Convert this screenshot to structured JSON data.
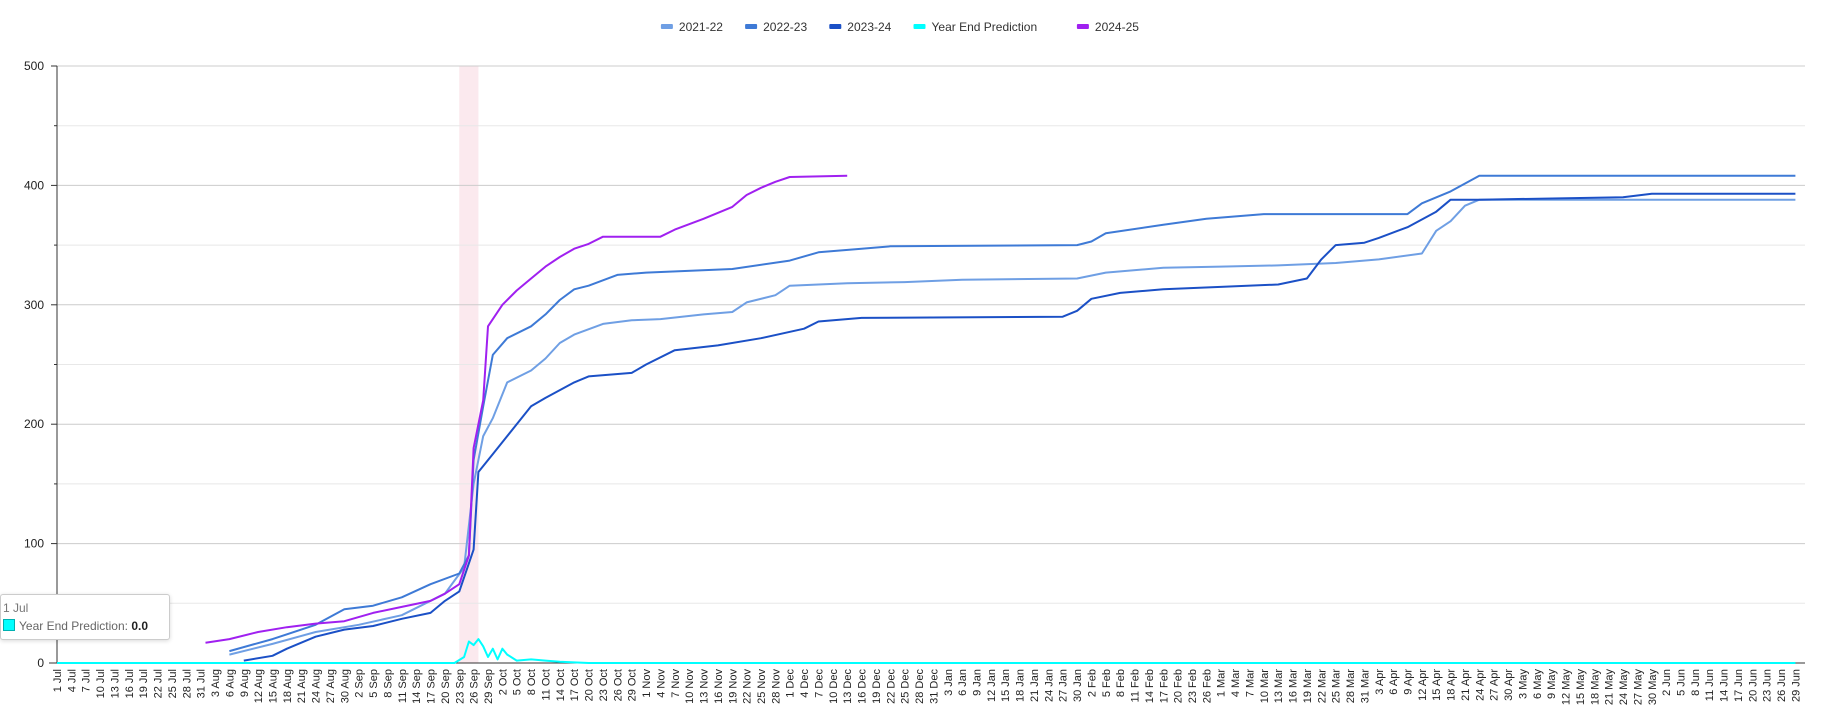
{
  "chart_data": {
    "type": "line",
    "title": "",
    "xlabel": "",
    "ylabel": "",
    "ylim": [
      0,
      500
    ],
    "yticks": [
      0,
      100,
      200,
      300,
      400,
      500
    ],
    "grid": true,
    "legend_position": "top-center",
    "x_tick_labels": [
      "1 Jul",
      "4 Jul",
      "7 Jul",
      "10 Jul",
      "13 Jul",
      "16 Jul",
      "19 Jul",
      "22 Jul",
      "25 Jul",
      "28 Jul",
      "31 Jul",
      "3 Aug",
      "6 Aug",
      "9 Aug",
      "12 Aug",
      "15 Aug",
      "18 Aug",
      "21 Aug",
      "24 Aug",
      "27 Aug",
      "30 Aug",
      "2 Sep",
      "5 Sep",
      "8 Sep",
      "11 Sep",
      "14 Sep",
      "17 Sep",
      "20 Sep",
      "23 Sep",
      "26 Sep",
      "29 Sep",
      "2 Oct",
      "5 Oct",
      "8 Oct",
      "11 Oct",
      "14 Oct",
      "17 Oct",
      "20 Oct",
      "23 Oct",
      "26 Oct",
      "29 Oct",
      "1 Nov",
      "4 Nov",
      "7 Nov",
      "10 Nov",
      "13 Nov",
      "16 Nov",
      "19 Nov",
      "22 Nov",
      "25 Nov",
      "28 Nov",
      "1 Dec",
      "4 Dec",
      "7 Dec",
      "10 Dec",
      "13 Dec",
      "16 Dec",
      "19 Dec",
      "22 Dec",
      "25 Dec",
      "28 Dec",
      "31 Dec",
      "3 Jan",
      "6 Jan",
      "9 Jan",
      "12 Jan",
      "15 Jan",
      "18 Jan",
      "21 Jan",
      "24 Jan",
      "27 Jan",
      "30 Jan",
      "2 Feb",
      "5 Feb",
      "8 Feb",
      "11 Feb",
      "14 Feb",
      "17 Feb",
      "20 Feb",
      "23 Feb",
      "26 Feb",
      "1 Mar",
      "4 Mar",
      "7 Mar",
      "10 Mar",
      "13 Mar",
      "16 Mar",
      "19 Mar",
      "22 Mar",
      "25 Mar",
      "28 Mar",
      "31 Mar",
      "3 Apr",
      "6 Apr",
      "9 Apr",
      "12 Apr",
      "15 Apr",
      "18 Apr",
      "21 Apr",
      "24 Apr",
      "27 Apr",
      "30 Apr",
      "3 May",
      "6 May",
      "9 May",
      "12 May",
      "15 May",
      "18 May",
      "21 May",
      "24 May",
      "27 May",
      "30 May",
      "2 Jun",
      "5 Jun",
      "8 Jun",
      "11 Jun",
      "14 Jun",
      "17 Jun",
      "20 Jun",
      "23 Jun",
      "26 Jun",
      "29 Jun"
    ],
    "highlight_band": {
      "from": "23 Sep",
      "to": "27 Sep",
      "color": "#fbe9ee"
    },
    "series": [
      {
        "name": "2021-22",
        "color": "#6f9fe4",
        "points": [
          [
            "6 Aug",
            7
          ],
          [
            "15 Aug",
            16
          ],
          [
            "24 Aug",
            26
          ],
          [
            "2 Sep",
            32
          ],
          [
            "11 Sep",
            40
          ],
          [
            "20 Sep",
            58
          ],
          [
            "24 Sep",
            80
          ],
          [
            "26 Sep",
            150
          ],
          [
            "28 Sep",
            190
          ],
          [
            "30 Sep",
            205
          ],
          [
            "3 Oct",
            235
          ],
          [
            "8 Oct",
            245
          ],
          [
            "11 Oct",
            255
          ],
          [
            "14 Oct",
            268
          ],
          [
            "17 Oct",
            275
          ],
          [
            "23 Oct",
            284
          ],
          [
            "29 Oct",
            287
          ],
          [
            "4 Nov",
            288
          ],
          [
            "13 Nov",
            292
          ],
          [
            "19 Nov",
            294
          ],
          [
            "22 Nov",
            302
          ],
          [
            "28 Nov",
            308
          ],
          [
            "1 Dec",
            316
          ],
          [
            "13 Dec",
            318
          ],
          [
            "25 Dec",
            319
          ],
          [
            "6 Jan",
            321
          ],
          [
            "30 Jan",
            322
          ],
          [
            "5 Feb",
            327
          ],
          [
            "17 Feb",
            331
          ],
          [
            "1 Mar",
            332
          ],
          [
            "13 Mar",
            333
          ],
          [
            "25 Mar",
            335
          ],
          [
            "3 Apr",
            338
          ],
          [
            "12 Apr",
            343
          ],
          [
            "15 Apr",
            362
          ],
          [
            "18 Apr",
            370
          ],
          [
            "21 Apr",
            383
          ],
          [
            "24 Apr",
            388
          ],
          [
            "30 May",
            388
          ],
          [
            "29 Jun",
            388
          ]
        ]
      },
      {
        "name": "2022-23",
        "color": "#3e7ad6",
        "points": [
          [
            "6 Aug",
            10
          ],
          [
            "15 Aug",
            20
          ],
          [
            "24 Aug",
            32
          ],
          [
            "30 Aug",
            45
          ],
          [
            "5 Sep",
            48
          ],
          [
            "11 Sep",
            55
          ],
          [
            "17 Sep",
            66
          ],
          [
            "23 Sep",
            75
          ],
          [
            "25 Sep",
            90
          ],
          [
            "26 Sep",
            170
          ],
          [
            "28 Sep",
            215
          ],
          [
            "30 Sep",
            258
          ],
          [
            "3 Oct",
            272
          ],
          [
            "8 Oct",
            282
          ],
          [
            "11 Oct",
            292
          ],
          [
            "14 Oct",
            304
          ],
          [
            "17 Oct",
            313
          ],
          [
            "20 Oct",
            316
          ],
          [
            "26 Oct",
            325
          ],
          [
            "1 Nov",
            327
          ],
          [
            "19 Nov",
            330
          ],
          [
            "1 Dec",
            337
          ],
          [
            "7 Dec",
            344
          ],
          [
            "16 Dec",
            347
          ],
          [
            "22 Dec",
            349
          ],
          [
            "30 Jan",
            350
          ],
          [
            "2 Feb",
            353
          ],
          [
            "5 Feb",
            360
          ],
          [
            "17 Feb",
            367
          ],
          [
            "26 Feb",
            372
          ],
          [
            "10 Mar",
            376
          ],
          [
            "9 Apr",
            376
          ],
          [
            "12 Apr",
            385
          ],
          [
            "18 Apr",
            395
          ],
          [
            "24 Apr",
            408
          ],
          [
            "29 Jun",
            408
          ]
        ]
      },
      {
        "name": "2023-24",
        "color": "#1b50c6",
        "points": [
          [
            "9 Aug",
            2
          ],
          [
            "15 Aug",
            6
          ],
          [
            "18 Aug",
            12
          ],
          [
            "24 Aug",
            22
          ],
          [
            "30 Aug",
            28
          ],
          [
            "5 Sep",
            31
          ],
          [
            "11 Sep",
            37
          ],
          [
            "17 Sep",
            42
          ],
          [
            "20 Sep",
            52
          ],
          [
            "23 Sep",
            60
          ],
          [
            "26 Sep",
            95
          ],
          [
            "27 Sep",
            160
          ],
          [
            "30 Sep",
            175
          ],
          [
            "3 Oct",
            190
          ],
          [
            "5 Oct",
            200
          ],
          [
            "8 Oct",
            215
          ],
          [
            "11 Oct",
            222
          ],
          [
            "17 Oct",
            235
          ],
          [
            "20 Oct",
            240
          ],
          [
            "29 Oct",
            243
          ],
          [
            "1 Nov",
            250
          ],
          [
            "7 Nov",
            262
          ],
          [
            "16 Nov",
            266
          ],
          [
            "25 Nov",
            272
          ],
          [
            "4 Dec",
            280
          ],
          [
            "7 Dec",
            286
          ],
          [
            "16 Dec",
            289
          ],
          [
            "27 Jan",
            290
          ],
          [
            "30 Jan",
            295
          ],
          [
            "2 Feb",
            305
          ],
          [
            "8 Feb",
            310
          ],
          [
            "17 Feb",
            313
          ],
          [
            "1 Mar",
            315
          ],
          [
            "13 Mar",
            317
          ],
          [
            "19 Mar",
            322
          ],
          [
            "22 Mar",
            338
          ],
          [
            "25 Mar",
            350
          ],
          [
            "31 Mar",
            352
          ],
          [
            "3 Apr",
            356
          ],
          [
            "9 Apr",
            365
          ],
          [
            "15 Apr",
            378
          ],
          [
            "18 Apr",
            388
          ],
          [
            "24 Apr",
            388
          ],
          [
            "24 May",
            390
          ],
          [
            "30 May",
            393
          ],
          [
            "29 Jun",
            393
          ]
        ]
      },
      {
        "name": "Year End Prediction",
        "color": "#00ffff",
        "points": [
          [
            "1 Jul",
            0
          ],
          [
            "22 Sep",
            0
          ],
          [
            "24 Sep",
            5
          ],
          [
            "25 Sep",
            18
          ],
          [
            "26 Sep",
            15
          ],
          [
            "27 Sep",
            20
          ],
          [
            "28 Sep",
            14
          ],
          [
            "29 Sep",
            5
          ],
          [
            "30 Sep",
            12
          ],
          [
            "1 Oct",
            3
          ],
          [
            "2 Oct",
            12
          ],
          [
            "3 Oct",
            7
          ],
          [
            "5 Oct",
            2
          ],
          [
            "8 Oct",
            3
          ],
          [
            "11 Oct",
            2
          ],
          [
            "14 Oct",
            1
          ],
          [
            "20 Oct",
            0
          ],
          [
            "29 Jun",
            0
          ]
        ]
      },
      {
        "name": "2024-25",
        "color": "#a020f0",
        "points": [
          [
            "1 Aug",
            17
          ],
          [
            "6 Aug",
            20
          ],
          [
            "12 Aug",
            26
          ],
          [
            "18 Aug",
            30
          ],
          [
            "24 Aug",
            33
          ],
          [
            "30 Aug",
            35
          ],
          [
            "5 Sep",
            42
          ],
          [
            "11 Sep",
            47
          ],
          [
            "17 Sep",
            52
          ],
          [
            "20 Sep",
            58
          ],
          [
            "23 Sep",
            66
          ],
          [
            "25 Sep",
            90
          ],
          [
            "26 Sep",
            180
          ],
          [
            "28 Sep",
            220
          ],
          [
            "29 Sep",
            282
          ],
          [
            "2 Oct",
            300
          ],
          [
            "5 Oct",
            312
          ],
          [
            "8 Oct",
            322
          ],
          [
            "11 Oct",
            332
          ],
          [
            "14 Oct",
            340
          ],
          [
            "17 Oct",
            347
          ],
          [
            "20 Oct",
            351
          ],
          [
            "23 Oct",
            357
          ],
          [
            "4 Nov",
            357
          ],
          [
            "7 Nov",
            363
          ],
          [
            "13 Nov",
            372
          ],
          [
            "19 Nov",
            382
          ],
          [
            "22 Nov",
            392
          ],
          [
            "25 Nov",
            398
          ],
          [
            "28 Nov",
            403
          ],
          [
            "1 Dec",
            407
          ],
          [
            "13 Dec",
            408
          ]
        ]
      }
    ]
  },
  "tooltip": {
    "date": "1 Jul",
    "series_name": "Year End Prediction",
    "value": "0.0"
  }
}
